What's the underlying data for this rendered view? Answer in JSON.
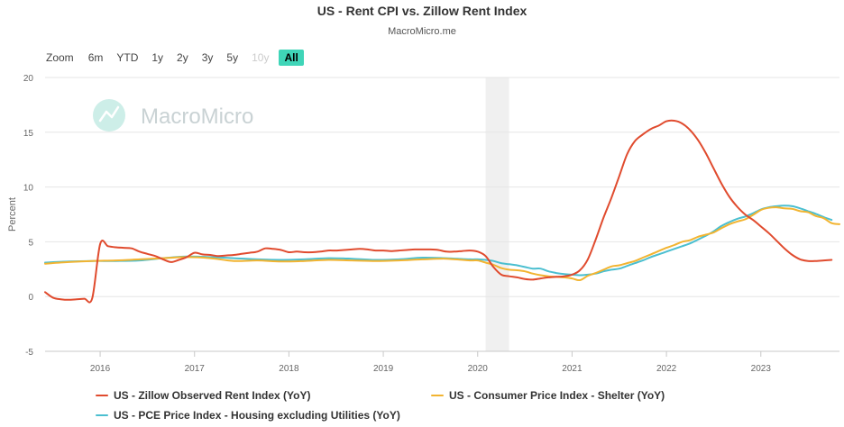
{
  "title": "US - Rent CPI vs. Zillow Rent Index",
  "subtitle": "MacroMicro.me",
  "watermark": "MacroMicro",
  "zoom": {
    "label": "Zoom",
    "buttons": [
      {
        "label": "6m",
        "state": "normal"
      },
      {
        "label": "YTD",
        "state": "normal"
      },
      {
        "label": "1y",
        "state": "normal"
      },
      {
        "label": "2y",
        "state": "normal"
      },
      {
        "label": "3y",
        "state": "normal"
      },
      {
        "label": "5y",
        "state": "normal"
      },
      {
        "label": "10y",
        "state": "disabled"
      },
      {
        "label": "All",
        "state": "active"
      }
    ]
  },
  "chart_data": {
    "type": "line",
    "title": "US - Rent CPI vs. Zillow Rent Index",
    "subtitle": "MacroMicro.me",
    "xlabel": "",
    "ylabel": "Percent",
    "xlim": [
      "2015-06-01",
      "2023-11-01"
    ],
    "ylim": [
      -5,
      20
    ],
    "yticks": [
      20,
      15,
      10,
      5,
      0,
      -5
    ],
    "xticks": [
      "2016",
      "2017",
      "2018",
      "2019",
      "2020",
      "2021",
      "2022",
      "2023"
    ],
    "grid": "horizontal",
    "legend_position": "bottom",
    "shaded_region": {
      "start": "2020-02-01",
      "end": "2020-05-01"
    },
    "series": [
      {
        "name": "US - Zillow Observed Rent Index (YoY)",
        "color": "#e04b2e",
        "points": [
          [
            "2015-06",
            0.4
          ],
          [
            "2015-07",
            -0.1
          ],
          [
            "2015-08",
            -0.25
          ],
          [
            "2015-09",
            -0.3
          ],
          [
            "2015-10",
            -0.25
          ],
          [
            "2015-11",
            -0.2
          ],
          [
            "2015-12",
            -0.15
          ],
          [
            "2016-01",
            4.8
          ],
          [
            "2016-02",
            4.6
          ],
          [
            "2016-03",
            4.5
          ],
          [
            "2016-04",
            4.45
          ],
          [
            "2016-05",
            4.4
          ],
          [
            "2016-06",
            4.1
          ],
          [
            "2016-07",
            3.9
          ],
          [
            "2016-08",
            3.7
          ],
          [
            "2016-09",
            3.4
          ],
          [
            "2016-10",
            3.15
          ],
          [
            "2016-11",
            3.35
          ],
          [
            "2016-12",
            3.6
          ],
          [
            "2017-01",
            4.0
          ],
          [
            "2017-02",
            3.85
          ],
          [
            "2017-03",
            3.8
          ],
          [
            "2017-04",
            3.7
          ],
          [
            "2017-05",
            3.75
          ],
          [
            "2017-06",
            3.8
          ],
          [
            "2017-07",
            3.9
          ],
          [
            "2017-08",
            4.0
          ],
          [
            "2017-09",
            4.1
          ],
          [
            "2017-10",
            4.4
          ],
          [
            "2017-11",
            4.35
          ],
          [
            "2017-12",
            4.25
          ],
          [
            "2018-01",
            4.05
          ],
          [
            "2018-02",
            4.1
          ],
          [
            "2018-03",
            4.05
          ],
          [
            "2018-04",
            4.05
          ],
          [
            "2018-05",
            4.1
          ],
          [
            "2018-06",
            4.2
          ],
          [
            "2018-07",
            4.2
          ],
          [
            "2018-08",
            4.25
          ],
          [
            "2018-09",
            4.3
          ],
          [
            "2018-10",
            4.35
          ],
          [
            "2018-11",
            4.3
          ],
          [
            "2018-12",
            4.2
          ],
          [
            "2019-01",
            4.2
          ],
          [
            "2019-02",
            4.15
          ],
          [
            "2019-03",
            4.2
          ],
          [
            "2019-04",
            4.25
          ],
          [
            "2019-05",
            4.3
          ],
          [
            "2019-06",
            4.3
          ],
          [
            "2019-07",
            4.3
          ],
          [
            "2019-08",
            4.25
          ],
          [
            "2019-09",
            4.1
          ],
          [
            "2019-10",
            4.1
          ],
          [
            "2019-11",
            4.15
          ],
          [
            "2019-12",
            4.2
          ],
          [
            "2020-01",
            4.1
          ],
          [
            "2020-02",
            3.7
          ],
          [
            "2020-03",
            2.7
          ],
          [
            "2020-04",
            2.0
          ],
          [
            "2020-05",
            1.85
          ],
          [
            "2020-06",
            1.75
          ],
          [
            "2020-07",
            1.6
          ],
          [
            "2020-08",
            1.55
          ],
          [
            "2020-09",
            1.65
          ],
          [
            "2020-10",
            1.75
          ],
          [
            "2020-11",
            1.8
          ],
          [
            "2020-12",
            1.85
          ],
          [
            "2021-01",
            2.0
          ],
          [
            "2021-02",
            2.4
          ],
          [
            "2021-03",
            3.4
          ],
          [
            "2021-04",
            5.2
          ],
          [
            "2021-05",
            7.2
          ],
          [
            "2021-06",
            9.0
          ],
          [
            "2021-07",
            11.0
          ],
          [
            "2021-08",
            13.0
          ],
          [
            "2021-09",
            14.2
          ],
          [
            "2021-10",
            14.8
          ],
          [
            "2021-11",
            15.3
          ],
          [
            "2021-12",
            15.6
          ],
          [
            "2022-01",
            16.0
          ],
          [
            "2022-02",
            16.05
          ],
          [
            "2022-03",
            15.8
          ],
          [
            "2022-04",
            15.2
          ],
          [
            "2022-05",
            14.3
          ],
          [
            "2022-06",
            13.1
          ],
          [
            "2022-07",
            11.7
          ],
          [
            "2022-08",
            10.3
          ],
          [
            "2022-09",
            9.1
          ],
          [
            "2022-10",
            8.2
          ],
          [
            "2022-11",
            7.5
          ],
          [
            "2022-12",
            7.0
          ],
          [
            "2023-01",
            6.4
          ],
          [
            "2023-02",
            5.8
          ],
          [
            "2023-03",
            5.1
          ],
          [
            "2023-04",
            4.4
          ],
          [
            "2023-05",
            3.8
          ],
          [
            "2023-06",
            3.4
          ],
          [
            "2023-07",
            3.25
          ],
          [
            "2023-08",
            3.25
          ],
          [
            "2023-09",
            3.3
          ],
          [
            "2023-10",
            3.35
          ]
        ]
      },
      {
        "name": "US - Consumer Price Index - Shelter (YoY)",
        "color": "#f2b431",
        "points": [
          [
            "2015-06",
            3.0
          ],
          [
            "2015-09",
            3.15
          ],
          [
            "2015-12",
            3.25
          ],
          [
            "2016-03",
            3.3
          ],
          [
            "2016-06",
            3.4
          ],
          [
            "2016-09",
            3.5
          ],
          [
            "2016-12",
            3.6
          ],
          [
            "2017-03",
            3.5
          ],
          [
            "2017-06",
            3.25
          ],
          [
            "2017-09",
            3.3
          ],
          [
            "2017-12",
            3.2
          ],
          [
            "2018-03",
            3.25
          ],
          [
            "2018-06",
            3.35
          ],
          [
            "2018-09",
            3.3
          ],
          [
            "2018-12",
            3.25
          ],
          [
            "2019-03",
            3.3
          ],
          [
            "2019-06",
            3.4
          ],
          [
            "2019-09",
            3.45
          ],
          [
            "2019-12",
            3.3
          ],
          [
            "2020-01",
            3.3
          ],
          [
            "2020-02",
            3.1
          ],
          [
            "2020-03",
            2.9
          ],
          [
            "2020-04",
            2.6
          ],
          [
            "2020-05",
            2.45
          ],
          [
            "2020-06",
            2.4
          ],
          [
            "2020-07",
            2.3
          ],
          [
            "2020-08",
            2.1
          ],
          [
            "2020-09",
            1.95
          ],
          [
            "2020-10",
            1.85
          ],
          [
            "2020-11",
            1.8
          ],
          [
            "2020-12",
            1.75
          ],
          [
            "2021-01",
            1.65
          ],
          [
            "2021-02",
            1.5
          ],
          [
            "2021-03",
            1.9
          ],
          [
            "2021-04",
            2.15
          ],
          [
            "2021-05",
            2.45
          ],
          [
            "2021-06",
            2.75
          ],
          [
            "2021-07",
            2.85
          ],
          [
            "2021-08",
            3.05
          ],
          [
            "2021-09",
            3.25
          ],
          [
            "2021-10",
            3.55
          ],
          [
            "2021-11",
            3.85
          ],
          [
            "2021-12",
            4.15
          ],
          [
            "2022-01",
            4.45
          ],
          [
            "2022-02",
            4.7
          ],
          [
            "2022-03",
            5.0
          ],
          [
            "2022-04",
            5.15
          ],
          [
            "2022-05",
            5.45
          ],
          [
            "2022-06",
            5.65
          ],
          [
            "2022-07",
            5.85
          ],
          [
            "2022-08",
            6.25
          ],
          [
            "2022-09",
            6.6
          ],
          [
            "2022-10",
            6.85
          ],
          [
            "2022-11",
            7.05
          ],
          [
            "2022-12",
            7.45
          ],
          [
            "2023-01",
            7.9
          ],
          [
            "2023-02",
            8.1
          ],
          [
            "2023-03",
            8.15
          ],
          [
            "2023-04",
            8.05
          ],
          [
            "2023-05",
            8.0
          ],
          [
            "2023-06",
            7.8
          ],
          [
            "2023-07",
            7.7
          ],
          [
            "2023-08",
            7.35
          ],
          [
            "2023-09",
            7.15
          ],
          [
            "2023-10",
            6.7
          ],
          [
            "2023-11",
            6.6
          ]
        ]
      },
      {
        "name": "US - PCE Price Index - Housing excluding Utilities (YoY)",
        "color": "#4bbfd0",
        "points": [
          [
            "2015-06",
            3.1
          ],
          [
            "2015-09",
            3.2
          ],
          [
            "2015-12",
            3.25
          ],
          [
            "2016-03",
            3.25
          ],
          [
            "2016-06",
            3.3
          ],
          [
            "2016-09",
            3.5
          ],
          [
            "2016-12",
            3.65
          ],
          [
            "2017-03",
            3.6
          ],
          [
            "2017-06",
            3.5
          ],
          [
            "2017-09",
            3.4
          ],
          [
            "2017-12",
            3.35
          ],
          [
            "2018-03",
            3.4
          ],
          [
            "2018-06",
            3.5
          ],
          [
            "2018-09",
            3.45
          ],
          [
            "2018-12",
            3.35
          ],
          [
            "2019-03",
            3.4
          ],
          [
            "2019-06",
            3.55
          ],
          [
            "2019-09",
            3.5
          ],
          [
            "2019-12",
            3.4
          ],
          [
            "2020-01",
            3.4
          ],
          [
            "2020-02",
            3.35
          ],
          [
            "2020-03",
            3.25
          ],
          [
            "2020-04",
            3.05
          ],
          [
            "2020-05",
            2.95
          ],
          [
            "2020-06",
            2.85
          ],
          [
            "2020-07",
            2.7
          ],
          [
            "2020-08",
            2.55
          ],
          [
            "2020-09",
            2.55
          ],
          [
            "2020-10",
            2.3
          ],
          [
            "2020-11",
            2.15
          ],
          [
            "2020-12",
            2.05
          ],
          [
            "2021-01",
            2.0
          ],
          [
            "2021-02",
            1.95
          ],
          [
            "2021-03",
            2.0
          ],
          [
            "2021-04",
            2.1
          ],
          [
            "2021-05",
            2.3
          ],
          [
            "2021-06",
            2.45
          ],
          [
            "2021-07",
            2.55
          ],
          [
            "2021-08",
            2.8
          ],
          [
            "2021-09",
            3.05
          ],
          [
            "2021-10",
            3.3
          ],
          [
            "2021-11",
            3.6
          ],
          [
            "2021-12",
            3.85
          ],
          [
            "2022-01",
            4.1
          ],
          [
            "2022-02",
            4.35
          ],
          [
            "2022-03",
            4.6
          ],
          [
            "2022-04",
            4.85
          ],
          [
            "2022-05",
            5.2
          ],
          [
            "2022-06",
            5.55
          ],
          [
            "2022-07",
            5.95
          ],
          [
            "2022-08",
            6.45
          ],
          [
            "2022-09",
            6.8
          ],
          [
            "2022-10",
            7.1
          ],
          [
            "2022-11",
            7.3
          ],
          [
            "2022-12",
            7.6
          ],
          [
            "2023-01",
            7.95
          ],
          [
            "2023-02",
            8.15
          ],
          [
            "2023-03",
            8.25
          ],
          [
            "2023-04",
            8.3
          ],
          [
            "2023-05",
            8.25
          ],
          [
            "2023-06",
            8.05
          ],
          [
            "2023-07",
            7.8
          ],
          [
            "2023-08",
            7.55
          ],
          [
            "2023-09",
            7.25
          ],
          [
            "2023-10",
            7.0
          ]
        ]
      }
    ]
  }
}
